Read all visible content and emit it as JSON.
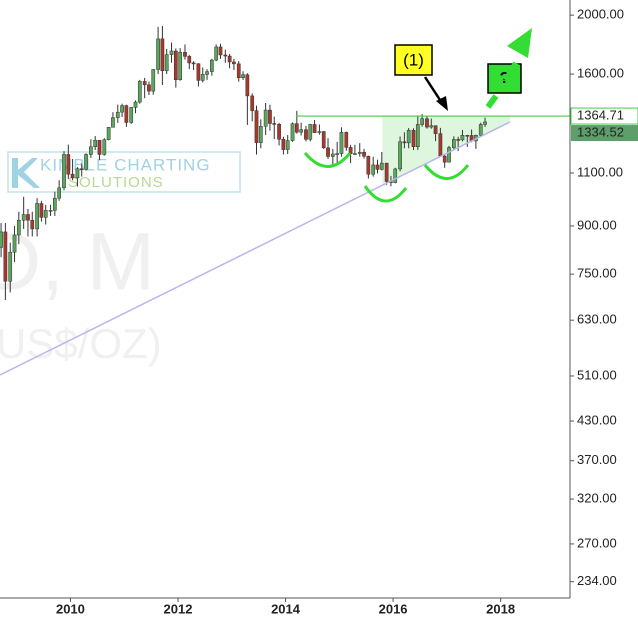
{
  "chart_data": {
    "type": "candlestick",
    "log_scale": true,
    "up_color": "#5aa65a",
    "down_color": "#a8382d",
    "xlim": [
      2008.69,
      2019.29
    ],
    "xticks": [
      2010,
      2012,
      2014,
      2016,
      2018
    ],
    "ylim": [
      220,
      2118
    ],
    "yticks": [
      {
        "value": 2000,
        "label": "2000.00"
      },
      {
        "value": 1600,
        "label": "1600.00"
      },
      {
        "value": 1100,
        "label": "1100.00"
      },
      {
        "value": 900,
        "label": "900.00"
      },
      {
        "value": 750,
        "label": "750.00"
      },
      {
        "value": 630,
        "label": "630.00"
      },
      {
        "value": 510,
        "label": "510.00"
      },
      {
        "value": 430,
        "label": "430.00"
      },
      {
        "value": 370,
        "label": "370.00"
      },
      {
        "value": 320,
        "label": "320.00"
      },
      {
        "value": 270,
        "label": "270.00"
      },
      {
        "value": 234,
        "label": "234.00"
      }
    ],
    "x": [
      2008.71,
      2008.79,
      2008.88,
      2008.96,
      2009.04,
      2009.13,
      2009.21,
      2009.29,
      2009.38,
      2009.46,
      2009.54,
      2009.63,
      2009.71,
      2009.79,
      2009.88,
      2009.96,
      2010.04,
      2010.13,
      2010.21,
      2010.29,
      2010.38,
      2010.46,
      2010.54,
      2010.63,
      2010.71,
      2010.79,
      2010.88,
      2010.96,
      2011.04,
      2011.13,
      2011.21,
      2011.29,
      2011.38,
      2011.46,
      2011.54,
      2011.63,
      2011.71,
      2011.79,
      2011.88,
      2011.96,
      2012.04,
      2012.13,
      2012.21,
      2012.29,
      2012.38,
      2012.46,
      2012.54,
      2012.63,
      2012.71,
      2012.79,
      2012.88,
      2012.96,
      2013.04,
      2013.13,
      2013.21,
      2013.29,
      2013.38,
      2013.46,
      2013.54,
      2013.63,
      2013.71,
      2013.79,
      2013.88,
      2013.96,
      2014.04,
      2014.13,
      2014.21,
      2014.29,
      2014.38,
      2014.46,
      2014.54,
      2014.63,
      2014.71,
      2014.79,
      2014.88,
      2014.96,
      2015.04,
      2015.13,
      2015.21,
      2015.29,
      2015.38,
      2015.46,
      2015.54,
      2015.63,
      2015.71,
      2015.79,
      2015.88,
      2015.96,
      2016.04,
      2016.13,
      2016.21,
      2016.29,
      2016.38,
      2016.46,
      2016.54,
      2016.63,
      2016.71,
      2016.79,
      2016.88,
      2016.96,
      2017.04,
      2017.13,
      2017.21,
      2017.29,
      2017.38,
      2017.46,
      2017.54,
      2017.63,
      2017.71
    ],
    "open": [
      830,
      880,
      730,
      815,
      870,
      920,
      940,
      920,
      890,
      980,
      930,
      955,
      955,
      1000,
      1040,
      1180,
      1095,
      1080,
      1118,
      1115,
      1180,
      1215,
      1245,
      1180,
      1248,
      1308,
      1357,
      1385,
      1420,
      1332,
      1410,
      1439,
      1556,
      1536,
      1500,
      1628,
      1828,
      1620,
      1722,
      1746,
      1566,
      1738,
      1711,
      1669,
      1664,
      1562,
      1598,
      1615,
      1687,
      1773,
      1720,
      1713,
      1675,
      1663,
      1578,
      1596,
      1473,
      1393,
      1234,
      1313,
      1396,
      1327,
      1323,
      1250,
      1202,
      1244,
      1326,
      1284,
      1296,
      1250,
      1322,
      1282,
      1287,
      1210,
      1171,
      1182,
      1184,
      1283,
      1212,
      1183,
      1184,
      1190,
      1172,
      1095,
      1134,
      1115,
      1142,
      1065,
      1061,
      1117,
      1238,
      1233,
      1293,
      1215,
      1322,
      1351,
      1309,
      1316,
      1277,
      1173,
      1146,
      1211,
      1249,
      1247,
      1269,
      1268,
      1242,
      1269,
      1322
    ],
    "high": [
      910,
      910,
      845,
      900,
      950,
      1005,
      960,
      950,
      1000,
      990,
      975,
      975,
      1025,
      1070,
      1195,
      1225,
      1160,
      1125,
      1140,
      1185,
      1250,
      1265,
      1245,
      1255,
      1310,
      1385,
      1425,
      1430,
      1425,
      1412,
      1448,
      1565,
      1577,
      1555,
      1630,
      1913,
      1920,
      1760,
      1803,
      1763,
      1765,
      1790,
      1720,
      1680,
      1667,
      1640,
      1630,
      1695,
      1790,
      1795,
      1755,
      1727,
      1695,
      1680,
      1617,
      1605,
      1487,
      1420,
      1348,
      1434,
      1425,
      1362,
      1330,
      1262,
      1270,
      1332,
      1392,
      1331,
      1315,
      1325,
      1345,
      1322,
      1290,
      1255,
      1205,
      1238,
      1308,
      1287,
      1224,
      1224,
      1232,
      1205,
      1175,
      1170,
      1157,
      1191,
      1143,
      1088,
      1122,
      1263,
      1283,
      1304,
      1303,
      1362,
      1375,
      1367,
      1352,
      1317,
      1305,
      1182,
      1219,
      1264,
      1262,
      1295,
      1271,
      1297,
      1272,
      1331,
      1357
    ],
    "low": [
      800,
      680,
      700,
      785,
      840,
      890,
      865,
      865,
      865,
      915,
      905,
      935,
      935,
      990,
      1030,
      1075,
      1070,
      1045,
      1085,
      1110,
      1165,
      1200,
      1155,
      1175,
      1245,
      1310,
      1330,
      1360,
      1310,
      1325,
      1380,
      1430,
      1460,
      1478,
      1480,
      1600,
      1535,
      1600,
      1670,
      1520,
      1560,
      1690,
      1630,
      1625,
      1527,
      1550,
      1565,
      1590,
      1680,
      1695,
      1670,
      1635,
      1625,
      1555,
      1565,
      1320,
      1338,
      1180,
      1208,
      1270,
      1292,
      1251,
      1221,
      1180,
      1182,
      1238,
      1277,
      1268,
      1240,
      1240,
      1280,
      1272,
      1205,
      1160,
      1131,
      1142,
      1170,
      1197,
      1142,
      1178,
      1170,
      1162,
      1077,
      1085,
      1098,
      1111,
      1052,
      1046,
      1058,
      1107,
      1208,
      1208,
      1200,
      1200,
      1311,
      1301,
      1301,
      1241,
      1171,
      1122,
      1145,
      1200,
      1195,
      1240,
      1214,
      1236,
      1205,
      1266,
      1310
    ],
    "close": [
      880,
      730,
      815,
      870,
      920,
      940,
      920,
      890,
      980,
      930,
      955,
      955,
      1000,
      1040,
      1180,
      1095,
      1080,
      1118,
      1115,
      1180,
      1215,
      1245,
      1180,
      1248,
      1308,
      1357,
      1385,
      1420,
      1332,
      1410,
      1439,
      1556,
      1536,
      1500,
      1628,
      1828,
      1620,
      1722,
      1746,
      1566,
      1738,
      1711,
      1669,
      1664,
      1562,
      1598,
      1615,
      1687,
      1773,
      1720,
      1713,
      1675,
      1663,
      1578,
      1596,
      1473,
      1393,
      1234,
      1313,
      1396,
      1327,
      1323,
      1250,
      1202,
      1244,
      1326,
      1284,
      1296,
      1250,
      1322,
      1282,
      1287,
      1210,
      1171,
      1182,
      1184,
      1283,
      1212,
      1183,
      1184,
      1190,
      1172,
      1095,
      1134,
      1115,
      1142,
      1065,
      1061,
      1117,
      1238,
      1233,
      1293,
      1215,
      1322,
      1351,
      1309,
      1316,
      1277,
      1173,
      1146,
      1211,
      1249,
      1247,
      1269,
      1268,
      1242,
      1269,
      1322,
      1334.52
    ],
    "resistance": {
      "value": 1364.71,
      "start": 2014.2,
      "color": "#44cc44"
    },
    "trendline": {
      "x": [
        2008.69,
        2018.17
      ],
      "values": [
        512,
        1334
      ],
      "color": "#b8b4ee"
    },
    "pattern_region": {
      "x": [
        2015.8,
        2018.17
      ]
    },
    "annotations": {
      "marker": "(1)",
      "question": "?"
    },
    "watermark": {
      "line1": "KIMBLE CHARTING",
      "line2": "SOLUTIONS",
      "symbol": "D, M",
      "unit": "US$/OZ)"
    }
  }
}
